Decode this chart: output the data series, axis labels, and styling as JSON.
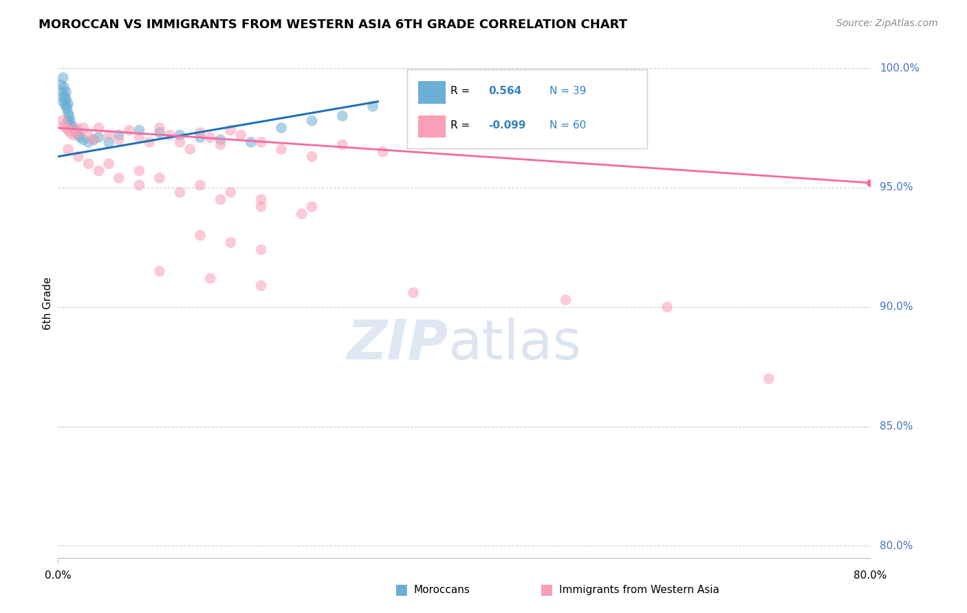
{
  "title": "MOROCCAN VS IMMIGRANTS FROM WESTERN ASIA 6TH GRADE CORRELATION CHART",
  "source": "Source: ZipAtlas.com",
  "ylabel": "6th Grade",
  "ytick_labels": [
    "100.0%",
    "95.0%",
    "90.0%",
    "85.0%",
    "80.0%"
  ],
  "ytick_values": [
    1.0,
    0.95,
    0.9,
    0.85,
    0.8
  ],
  "xlim": [
    0.0,
    0.8
  ],
  "ylim": [
    0.795,
    1.008
  ],
  "blue_R": 0.564,
  "blue_N": 39,
  "pink_R": -0.099,
  "pink_N": 60,
  "blue_color": "#6baed6",
  "blue_line_color": "#2171b5",
  "pink_color": "#fa9fb5",
  "pink_line_color": "#f768a1",
  "legend_R_color": "#3182bd",
  "blue_trend_x0": 0.0,
  "blue_trend_y0": 0.963,
  "blue_trend_x1": 0.315,
  "blue_trend_y1": 0.986,
  "pink_trend_x0": 0.0,
  "pink_trend_y0": 0.975,
  "pink_trend_x1": 0.8,
  "pink_trend_y1": 0.952
}
